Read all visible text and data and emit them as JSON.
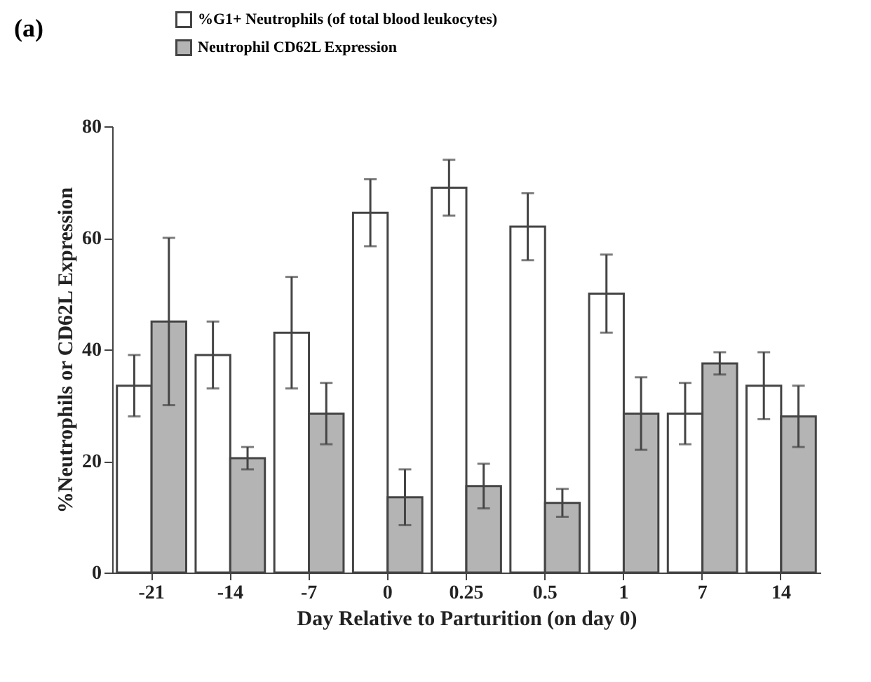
{
  "chart_data": {
    "type": "bar",
    "title": "(a)",
    "xlabel": "Day Relative to Parturition (on day 0)",
    "ylabel": "%Neutrophils or CD62L Expression",
    "categories": [
      "-21",
      "-14",
      "-7",
      "0",
      "0.25",
      "0.5",
      "1",
      "7",
      "14"
    ],
    "series": [
      {
        "name": "%G1+ Neutrophils (of total blood leukocytes)",
        "color": "#ffffff",
        "values": [
          33.5,
          39,
          43,
          64.5,
          69,
          62,
          50,
          28.5,
          33.5
        ],
        "errors": [
          5.5,
          6,
          10,
          6,
          5,
          6,
          7,
          5.5,
          6
        ]
      },
      {
        "name": "Neutrophil CD62L Expression",
        "color": "#b4b4b4",
        "values": [
          45,
          20.5,
          28.5,
          13.5,
          15.5,
          12.5,
          28.5,
          37.5,
          28
        ],
        "errors": [
          15,
          2,
          5.5,
          5,
          4,
          2.5,
          6.5,
          2,
          5.5
        ]
      }
    ],
    "ylim": [
      0,
      80
    ],
    "yticks": [
      0,
      20,
      40,
      60,
      80
    ],
    "grid": false,
    "legend": "top left"
  }
}
